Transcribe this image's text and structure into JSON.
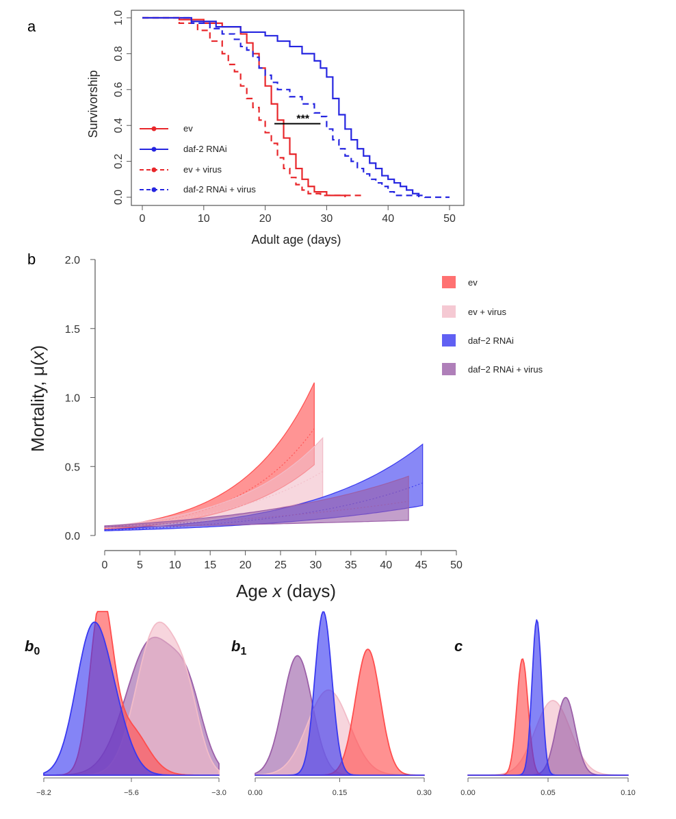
{
  "colors": {
    "red": "#e8262a",
    "blue": "#2525e0",
    "ev_fill": "#ff4d4d",
    "ev_virus_fill": "#f2bcc8",
    "daf2_fill": "#3838f0",
    "daf2_virus_fill": "#9b5fa8",
    "axis": "#444444"
  },
  "panels": {
    "a": {
      "letter": "a"
    },
    "b": {
      "letter": "b"
    }
  },
  "chart_data": [
    {
      "id": "survival",
      "type": "line",
      "step": true,
      "xlabel": "Adult age (days)",
      "ylabel": "Survivorship",
      "xlim": [
        0,
        50
      ],
      "ylim": [
        0,
        1
      ],
      "xticks": [
        "0",
        "10",
        "20",
        "30",
        "40",
        "50"
      ],
      "yticks": [
        "0.0",
        "0.2",
        "0.4",
        "0.6",
        "0.8",
        "1.0"
      ],
      "annotation": {
        "text": "***",
        "x1": 21.5,
        "x2": 29,
        "y": 0.41
      },
      "series": [
        {
          "name": "ev",
          "style": "solid",
          "color": "#e8262a",
          "points": [
            [
              0,
              1
            ],
            [
              6,
              0.99
            ],
            [
              10,
              0.97
            ],
            [
              13,
              0.95
            ],
            [
              16,
              0.91
            ],
            [
              17,
              0.86
            ],
            [
              18,
              0.8
            ],
            [
              19,
              0.72
            ],
            [
              20,
              0.62
            ],
            [
              21,
              0.52
            ],
            [
              22,
              0.43
            ],
            [
              23,
              0.33
            ],
            [
              24,
              0.24
            ],
            [
              25,
              0.16
            ],
            [
              26,
              0.1
            ],
            [
              27,
              0.06
            ],
            [
              28,
              0.03
            ],
            [
              30,
              0.01
            ],
            [
              33,
              0
            ]
          ]
        },
        {
          "name": "daf-2 RNAi",
          "style": "solid",
          "color": "#2525e0",
          "points": [
            [
              0,
              1
            ],
            [
              8,
              0.98
            ],
            [
              12,
              0.95
            ],
            [
              16,
              0.92
            ],
            [
              20,
              0.9
            ],
            [
              22,
              0.87
            ],
            [
              24,
              0.84
            ],
            [
              26,
              0.8
            ],
            [
              28,
              0.76
            ],
            [
              29,
              0.72
            ],
            [
              30,
              0.67
            ],
            [
              31,
              0.55
            ],
            [
              32,
              0.46
            ],
            [
              33,
              0.38
            ],
            [
              34,
              0.32
            ],
            [
              35,
              0.27
            ],
            [
              36,
              0.23
            ],
            [
              37,
              0.19
            ],
            [
              38,
              0.16
            ],
            [
              39,
              0.12
            ],
            [
              40,
              0.1
            ],
            [
              41,
              0.08
            ],
            [
              42,
              0.06
            ],
            [
              43,
              0.04
            ],
            [
              44,
              0.02
            ],
            [
              45,
              0
            ]
          ]
        },
        {
          "name": "ev + virus",
          "style": "dashed",
          "color": "#e8262a",
          "points": [
            [
              0,
              1
            ],
            [
              6,
              0.97
            ],
            [
              9,
              0.93
            ],
            [
              11,
              0.87
            ],
            [
              13,
              0.8
            ],
            [
              14,
              0.74
            ],
            [
              15,
              0.7
            ],
            [
              16,
              0.62
            ],
            [
              17,
              0.55
            ],
            [
              18,
              0.5
            ],
            [
              19,
              0.43
            ],
            [
              20,
              0.36
            ],
            [
              21,
              0.3
            ],
            [
              22,
              0.22
            ],
            [
              23,
              0.16
            ],
            [
              24,
              0.11
            ],
            [
              25,
              0.07
            ],
            [
              26,
              0.04
            ],
            [
              27,
              0.02
            ],
            [
              29,
              0.01
            ],
            [
              36,
              0.01
            ]
          ]
        },
        {
          "name": "daf-2 RNAi + virus",
          "style": "dashed",
          "color": "#2525e0",
          "points": [
            [
              0,
              1
            ],
            [
              8,
              0.97
            ],
            [
              11,
              0.94
            ],
            [
              13,
              0.91
            ],
            [
              15,
              0.88
            ],
            [
              16,
              0.84
            ],
            [
              17,
              0.82
            ],
            [
              18,
              0.78
            ],
            [
              19,
              0.72
            ],
            [
              20,
              0.68
            ],
            [
              21,
              0.64
            ],
            [
              22,
              0.6
            ],
            [
              24,
              0.56
            ],
            [
              26,
              0.52
            ],
            [
              28,
              0.47
            ],
            [
              29,
              0.45
            ],
            [
              30,
              0.38
            ],
            [
              31,
              0.32
            ],
            [
              32,
              0.27
            ],
            [
              33,
              0.23
            ],
            [
              34,
              0.2
            ],
            [
              35,
              0.16
            ],
            [
              36,
              0.13
            ],
            [
              37,
              0.1
            ],
            [
              38,
              0.08
            ],
            [
              39,
              0.06
            ],
            [
              40,
              0.03
            ],
            [
              41,
              0.01
            ],
            [
              46,
              0
            ],
            [
              50,
              0
            ]
          ]
        }
      ]
    },
    {
      "id": "mortality",
      "type": "area",
      "xlabel_prefix": "Age ",
      "xlabel_var": "x",
      "xlabel_suffix": " (days)",
      "ylabel_prefix": "Mortality, μ(",
      "ylabel_var": "x",
      "ylabel_suffix": ")",
      "xlim": [
        0,
        50
      ],
      "ylim": [
        0,
        2
      ],
      "xticks": [
        "0",
        "5",
        "10",
        "15",
        "20",
        "25",
        "30",
        "35",
        "40",
        "45",
        "50"
      ],
      "yticks": [
        "0.0",
        "0.5",
        "1.0",
        "1.5",
        "2.0"
      ],
      "legend": [
        "ev",
        "ev + virus",
        "daf−2 RNAi",
        "daf−2 RNAi + virus"
      ],
      "series": [
        {
          "name": "ev",
          "color": "#ff4d4d",
          "xmax": 29.8,
          "upper": {
            "a": 0.058,
            "b": 0.099
          },
          "lower": {
            "a": 0.042,
            "b": 0.084
          },
          "mean": {
            "a": 0.05,
            "b": 0.092
          }
        },
        {
          "name": "ev + virus",
          "color": "#f2bcc8",
          "xmax": 31,
          "upper": {
            "a": 0.065,
            "b": 0.077
          },
          "lower": {
            "a": 0.055,
            "b": 0.052
          },
          "mean": {
            "a": 0.06,
            "b": 0.066
          }
        },
        {
          "name": "daf−2 RNAi",
          "color": "#3838f0",
          "xmax": 45.2,
          "upper": {
            "a": 0.042,
            "b": 0.061
          },
          "lower": {
            "a": 0.034,
            "b": 0.041
          },
          "mean": {
            "a": 0.038,
            "b": 0.051
          }
        },
        {
          "name": "daf−2 RNAi + virus",
          "color": "#9b5fa8",
          "xmax": 43.2,
          "upper": {
            "a": 0.07,
            "b": 0.042
          },
          "lower": {
            "a": 0.06,
            "b": 0.014
          },
          "mean": {
            "a": 0.065,
            "b": 0.031
          }
        }
      ]
    },
    {
      "id": "b0",
      "type": "area",
      "label_base": "b",
      "label_sub": "0",
      "xlim": [
        -8.2,
        -3.0
      ],
      "xticks": [
        "−8.2",
        "−5.6",
        "−3.0"
      ],
      "series": [
        {
          "name": "daf−2 RNAi + virus",
          "color": "#9b5fa8",
          "peaks": [
            {
              "mu": -5.0,
              "sd": 0.75,
              "w": 0.82
            },
            {
              "mu": -3.9,
              "sd": 0.45,
              "w": 0.35
            }
          ]
        },
        {
          "name": "ev + virus",
          "color": "#f2bcc8",
          "peaks": [
            {
              "mu": -4.85,
              "sd": 0.6,
              "w": 0.9
            },
            {
              "mu": -3.95,
              "sd": 0.4,
              "w": 0.35
            }
          ]
        },
        {
          "name": "ev",
          "color": "#ff4d4d",
          "peaks": [
            {
              "mu": -6.5,
              "sd": 0.33,
              "w": 1.0
            },
            {
              "mu": -5.7,
              "sd": 0.55,
              "w": 0.3
            }
          ]
        },
        {
          "name": "daf−2 RNAi",
          "color": "#3838f0",
          "peaks": [
            {
              "mu": -6.75,
              "sd": 0.5,
              "w": 0.88
            },
            {
              "mu": -6.0,
              "sd": 0.45,
              "w": 0.2
            }
          ]
        }
      ]
    },
    {
      "id": "b1",
      "type": "area",
      "label_base": "b",
      "label_sub": "1",
      "xlim": [
        0.0,
        0.3
      ],
      "xticks": [
        "0.00",
        "0.15",
        "0.30"
      ],
      "series": [
        {
          "name": "daf−2 RNAi + virus",
          "color": "#9b5fa8",
          "peaks": [
            {
              "mu": 0.075,
              "sd": 0.026,
              "w": 0.73
            }
          ]
        },
        {
          "name": "ev + virus",
          "color": "#f2bcc8",
          "peaks": [
            {
              "mu": 0.13,
              "sd": 0.037,
              "w": 0.52
            }
          ]
        },
        {
          "name": "ev",
          "color": "#ff4d4d",
          "peaks": [
            {
              "mu": 0.2,
              "sd": 0.022,
              "w": 0.77
            }
          ]
        },
        {
          "name": "daf−2 RNAi",
          "color": "#3838f0",
          "peaks": [
            {
              "mu": 0.121,
              "sd": 0.015,
              "w": 1.0
            }
          ]
        }
      ]
    },
    {
      "id": "c",
      "type": "area",
      "label_base": "c",
      "label_sub": "",
      "xlim": [
        0.0,
        0.1
      ],
      "xticks": [
        "0.00",
        "0.05",
        "0.10"
      ],
      "series": [
        {
          "name": "ev + virus",
          "color": "#f2bcc8",
          "peaks": [
            {
              "mu": 0.053,
              "sd": 0.011,
              "w": 0.48
            }
          ]
        },
        {
          "name": "daf−2 RNAi + virus",
          "color": "#9b5fa8",
          "peaks": [
            {
              "mu": 0.061,
              "sd": 0.006,
              "w": 0.5
            }
          ]
        },
        {
          "name": "ev",
          "color": "#ff4d4d",
          "peaks": [
            {
              "mu": 0.034,
              "sd": 0.0035,
              "w": 0.75
            }
          ]
        },
        {
          "name": "daf−2 RNAi",
          "color": "#3838f0",
          "peaks": [
            {
              "mu": 0.043,
              "sd": 0.003,
              "w": 1.0
            }
          ]
        }
      ]
    }
  ]
}
